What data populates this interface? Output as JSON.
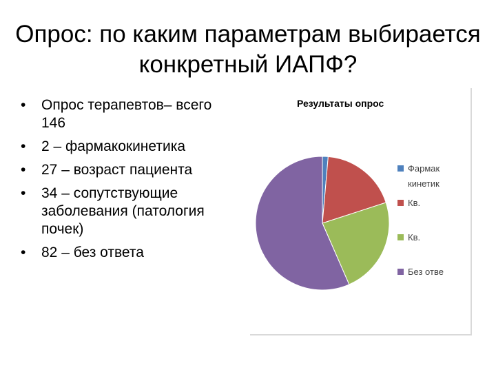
{
  "title": "Опрос: по каким параметрам выбирается конкретный ИАПФ?",
  "bullets": [
    "Опрос терапевтов– всего 146",
    "2 – фармакокинетика",
    "27 – возраст пациента",
    "34 – сопутствующие заболевания (патология почек)",
    "82 – без ответа"
  ],
  "chart_data": {
    "type": "pie",
    "title": "Результаты  опрос",
    "categories": [
      "Фармак кинетик",
      "Кв.",
      "Кв.",
      "Без отве"
    ],
    "values": [
      2,
      27,
      34,
      82
    ],
    "colors": [
      "#4f81bd",
      "#c0504d",
      "#9bbb59",
      "#8064a2"
    ]
  }
}
